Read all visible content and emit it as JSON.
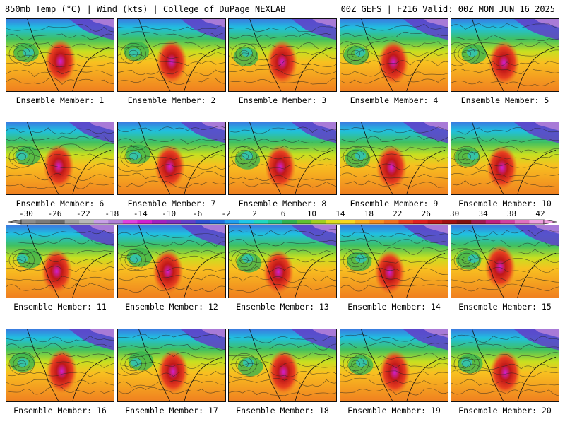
{
  "header": {
    "left": "850mb Temp (°C) | Wind (kts) | College of DuPage NEXLAB",
    "right": "00Z GEFS | F216 Valid: 00Z MON JUN 16 2025"
  },
  "members": [
    "Ensemble Member: 1",
    "Ensemble Member: 2",
    "Ensemble Member: 3",
    "Ensemble Member: 4",
    "Ensemble Member: 5",
    "Ensemble Member: 6",
    "Ensemble Member: 7",
    "Ensemble Member: 8",
    "Ensemble Member: 9",
    "Ensemble Member: 10",
    "Ensemble Member: 11",
    "Ensemble Member: 12",
    "Ensemble Member: 13",
    "Ensemble Member: 14",
    "Ensemble Member: 15",
    "Ensemble Member: 16",
    "Ensemble Member: 17",
    "Ensemble Member: 18",
    "Ensemble Member: 19",
    "Ensemble Member: 20"
  ],
  "colorbar": {
    "ticks": [
      "-30",
      "-26",
      "-22",
      "-18",
      "-14",
      "-10",
      "-6",
      "-2",
      "2",
      "6",
      "10",
      "14",
      "18",
      "22",
      "26",
      "30",
      "34",
      "38",
      "42"
    ],
    "colors": [
      "#8c8c8c",
      "#7a7a7a",
      "#6a6a6a",
      "#a0a0a0",
      "#b9b9b9",
      "#c8a0e6",
      "#b080d8",
      "#e040e0",
      "#d020d0",
      "#a020c0",
      "#8030c0",
      "#6040c8",
      "#3050d0",
      "#2070e0",
      "#20a0f0",
      "#20c8e8",
      "#20d8c0",
      "#20c890",
      "#30b050",
      "#60c030",
      "#a0d020",
      "#e0e020",
      "#f8d820",
      "#f8b020",
      "#f89020",
      "#f07020",
      "#e84020",
      "#e02020",
      "#c01818",
      "#a01010",
      "#801010",
      "#a01850",
      "#c02080",
      "#d040a0",
      "#e070c0",
      "#f0a0e0"
    ]
  }
}
